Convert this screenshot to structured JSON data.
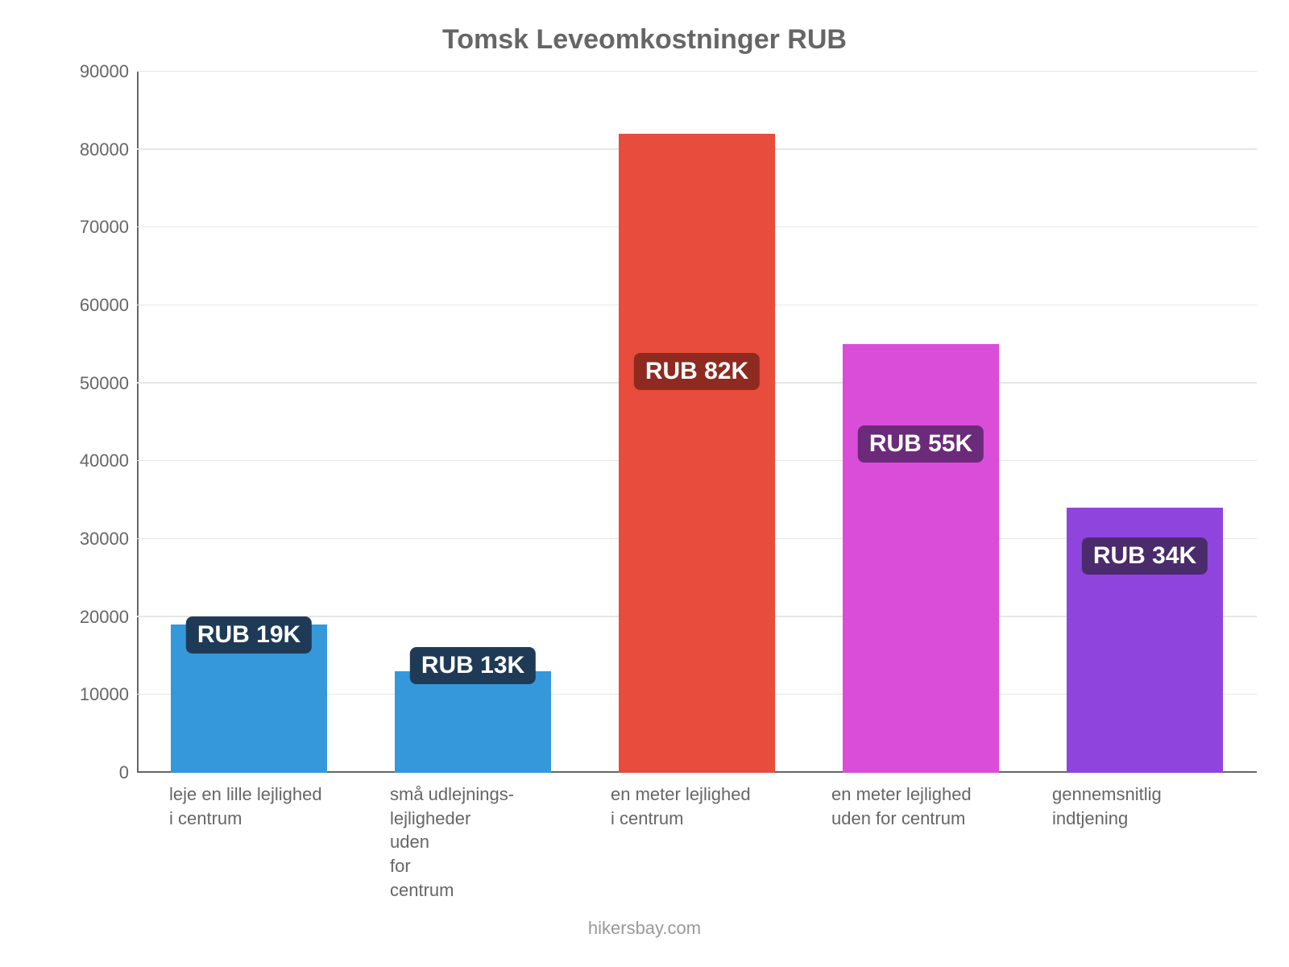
{
  "chart": {
    "type": "bar",
    "title": "Tomsk Leveomkostninger RUB",
    "title_fontsize": 34,
    "title_color": "#666666",
    "background_color": "#ffffff",
    "grid_color": "#e6e6e6",
    "axis_color": "#666666",
    "label_color": "#666666",
    "label_fontsize": 22,
    "ylim": [
      0,
      90000
    ],
    "ytick_step": 10000,
    "yticks": [
      0,
      10000,
      20000,
      30000,
      40000,
      50000,
      60000,
      70000,
      80000,
      90000
    ],
    "bar_width": 0.7,
    "value_label_fontsize": 30,
    "footer": "hikersbay.com",
    "footer_color": "#999999",
    "categories": [
      "leje en lille lejlighed i centrum",
      "små udlejnings-lejligheder uden for centrum",
      "en meter lejlighed i centrum",
      "en meter lejlighed uden for centrum",
      "gennemsnitlig indtjening"
    ],
    "values": [
      19000,
      13000,
      82000,
      55000,
      34000
    ],
    "value_labels": [
      "RUB 19K",
      "RUB 13K",
      "RUB 82K",
      "RUB 55K",
      "RUB 34K"
    ],
    "bar_colors": [
      "#3498db",
      "#3498db",
      "#e74c3c",
      "#d94dd9",
      "#8e44dd"
    ],
    "badge_colors": [
      "#1f3a57",
      "#1f3a57",
      "#8e2a20",
      "#6b2b7a",
      "#4a2b6b"
    ]
  }
}
